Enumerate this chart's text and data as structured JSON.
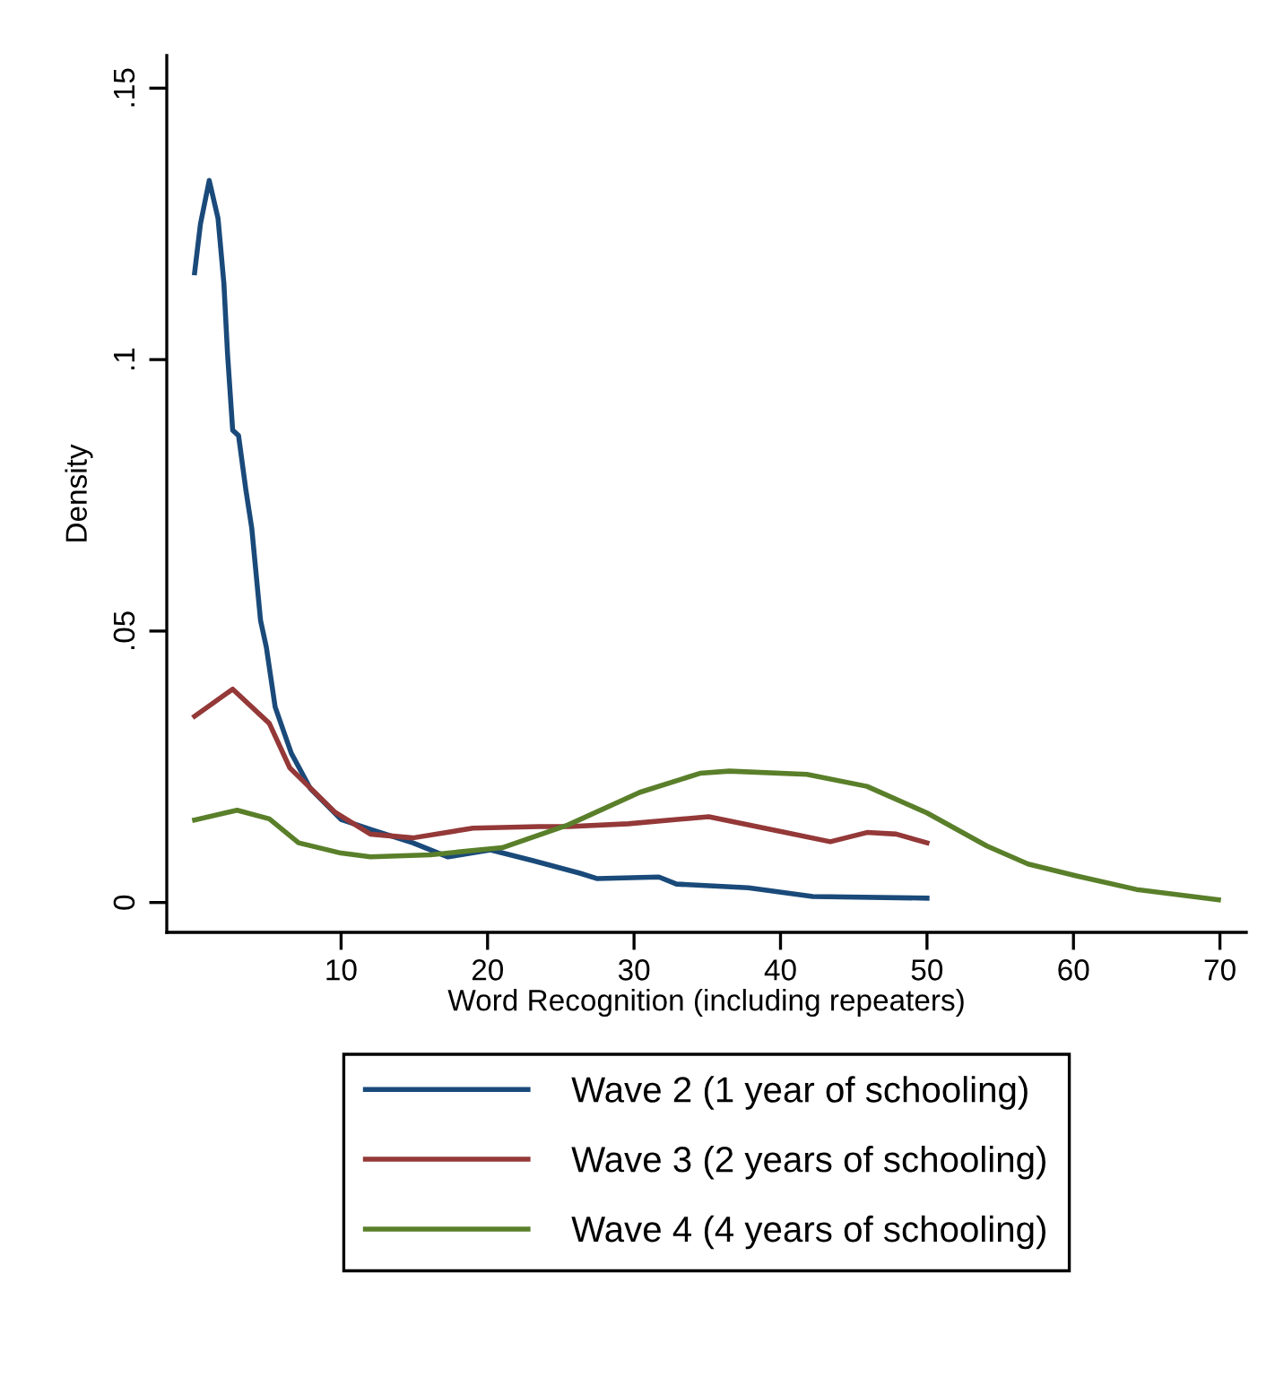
{
  "chart_data": {
    "type": "line",
    "xlabel": "Word Recognition (including repeaters)",
    "ylabel": "Density",
    "xlim": [
      -1.9,
      71.8
    ],
    "ylim": [
      -0.0055,
      0.156
    ],
    "xticks": [
      10,
      20,
      30,
      40,
      50,
      60,
      70
    ],
    "yticks": [
      {
        "value": 0,
        "label": "0"
      },
      {
        "value": 0.05,
        "label": ".05"
      },
      {
        "value": 0.1,
        "label": ".1"
      },
      {
        "value": 0.15,
        "label": ".15"
      }
    ],
    "grid": false,
    "legend": "bottom",
    "line_style": "solid",
    "marker": "none",
    "series": [
      {
        "name": "Wave 2 (1 year of schooling)",
        "color": "#1a4a7a",
        "x": [
          0,
          0.4,
          1.0,
          1.6,
          2.0,
          2.25,
          2.6,
          3.0,
          3.5,
          3.9,
          4.5,
          4.9,
          5.5,
          6.6,
          7.9,
          10,
          12.1,
          14.9,
          17.3,
          20.2,
          23.1,
          26.3,
          27.5,
          31.7,
          32.9,
          37.8,
          42.2,
          50
        ],
        "values": [
          0.116,
          0.125,
          0.133,
          0.126,
          0.114,
          0.101,
          0.087,
          0.086,
          0.076,
          0.069,
          0.052,
          0.047,
          0.036,
          0.0275,
          0.021,
          0.0153,
          0.0134,
          0.011,
          0.0084,
          0.0097,
          0.0077,
          0.0054,
          0.0044,
          0.0047,
          0.0034,
          0.0027,
          0.0011,
          0.0008
        ]
      },
      {
        "name": "Wave 3 (2 years of schooling)",
        "color": "#943838",
        "x": [
          0,
          2.6,
          5.1,
          6.5,
          9.6,
          12,
          14.9,
          19,
          23.5,
          25.5,
          29.6,
          35.1,
          39.8,
          43.4,
          45.9,
          47.9,
          50
        ],
        "values": [
          0.0343,
          0.0393,
          0.033,
          0.0248,
          0.0166,
          0.0126,
          0.0119,
          0.0137,
          0.014,
          0.014,
          0.0145,
          0.0158,
          0.0132,
          0.0112,
          0.0129,
          0.0126,
          0.011
        ]
      },
      {
        "name": "Wave 4 (4 years of schooling)",
        "color": "#5a7f2a",
        "x": [
          0,
          2.9,
          5.1,
          7.1,
          10,
          12,
          16.1,
          21,
          25.5,
          30.4,
          34.5,
          36.5,
          41.8,
          45.9,
          50,
          54.1,
          56.9,
          60.2,
          64.3,
          69.9
        ],
        "values": [
          0.0152,
          0.017,
          0.0154,
          0.011,
          0.0091,
          0.0084,
          0.0088,
          0.0101,
          0.0143,
          0.0203,
          0.0238,
          0.0242,
          0.0236,
          0.0214,
          0.0165,
          0.0104,
          0.0071,
          0.0049,
          0.0024,
          0.0005
        ]
      }
    ]
  }
}
